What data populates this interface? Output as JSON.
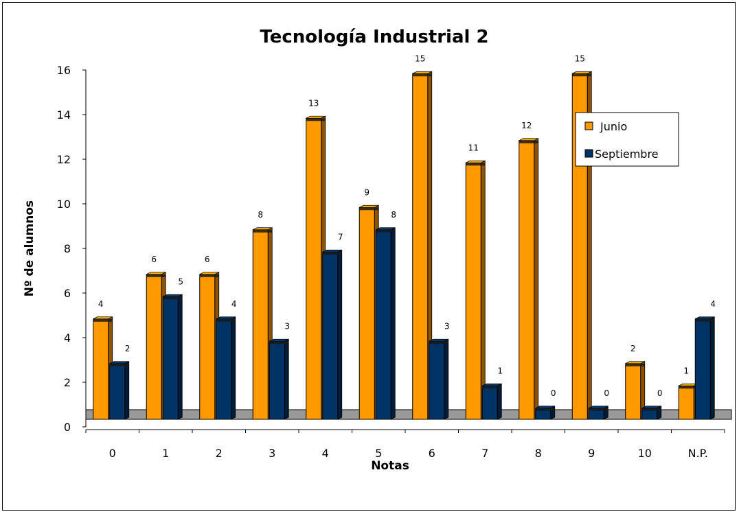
{
  "chart_data": {
    "type": "bar",
    "title": "Tecnología Industrial 2",
    "xlabel": "Notas",
    "ylabel": "Nº de alumnos",
    "categories": [
      "0",
      "1",
      "2",
      "3",
      "4",
      "5",
      "6",
      "7",
      "8",
      "9",
      "10",
      "N.P."
    ],
    "series": [
      {
        "name": "Junio",
        "color": "#ff9900",
        "values": [
          4,
          6,
          6,
          8,
          13,
          9,
          15,
          11,
          12,
          15,
          2,
          1
        ]
      },
      {
        "name": "Septiembre",
        "color": "#003366",
        "values": [
          2,
          5,
          4,
          3,
          7,
          8,
          3,
          1,
          0,
          0,
          0,
          4
        ]
      }
    ],
    "ylim": [
      0,
      16
    ],
    "yticks": [
      "0",
      "2",
      "4",
      "6",
      "8",
      "10",
      "12",
      "14",
      "16"
    ],
    "legend_position": "right",
    "grid": false,
    "floor_color": "#999999"
  }
}
